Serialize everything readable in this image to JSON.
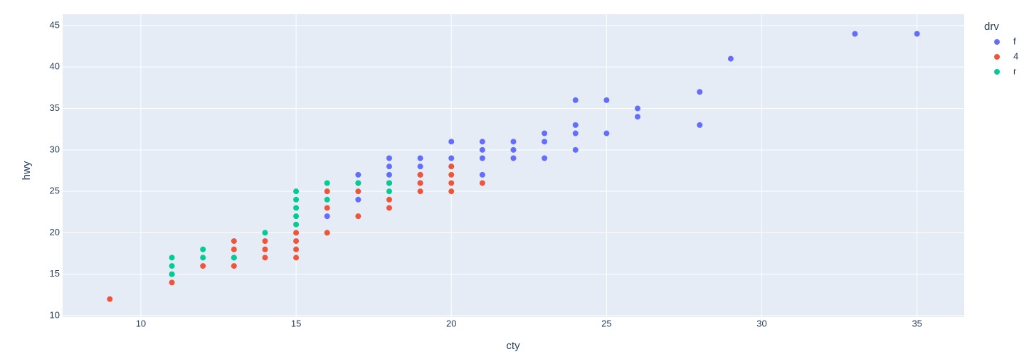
{
  "chart_data": {
    "type": "scatter",
    "x_label": "cty",
    "y_label": "hwy",
    "legend_title": "drv",
    "legend_position": "right",
    "grid": true,
    "xlim": [
      7.48,
      36.52
    ],
    "ylim": [
      9.83,
      46.37
    ],
    "xticks": [
      10,
      15,
      20,
      25,
      30,
      35
    ],
    "yticks": [
      10,
      15,
      20,
      25,
      30,
      35,
      40,
      45
    ],
    "series": [
      {
        "name": "f",
        "color": "#636efa",
        "x": [
          35,
          33,
          29,
          28,
          28,
          26,
          26,
          25,
          25,
          24,
          24,
          24,
          24,
          23,
          23,
          23,
          22,
          22,
          22,
          21,
          21,
          21,
          21,
          20,
          20,
          20,
          19,
          19,
          19,
          19,
          18,
          18,
          18,
          18,
          17,
          17,
          17,
          16
        ],
        "y": [
          44,
          44,
          41,
          37,
          33,
          35,
          34,
          36,
          32,
          36,
          33,
          32,
          30,
          32,
          31,
          29,
          31,
          30,
          29,
          31,
          30,
          29,
          27,
          31,
          29,
          28,
          29,
          28,
          27,
          26,
          29,
          28,
          27,
          26,
          27,
          26,
          24,
          22
        ]
      },
      {
        "name": "4",
        "color": "#ef553b",
        "x": [
          9,
          11,
          11,
          12,
          13,
          13,
          13,
          13,
          14,
          14,
          14,
          15,
          15,
          15,
          15,
          16,
          16,
          16,
          17,
          17,
          18,
          18,
          18,
          19,
          19,
          19,
          20,
          20,
          20,
          20,
          21
        ],
        "y": [
          12,
          14,
          15,
          16,
          16,
          17,
          18,
          19,
          17,
          18,
          19,
          17,
          18,
          19,
          20,
          20,
          23,
          25,
          22,
          25,
          23,
          24,
          26,
          25,
          26,
          27,
          25,
          26,
          27,
          28,
          26
        ]
      },
      {
        "name": "r",
        "color": "#00cc96",
        "x": [
          11,
          11,
          11,
          12,
          12,
          13,
          14,
          15,
          15,
          15,
          15,
          15,
          16,
          16,
          17,
          18,
          18
        ],
        "y": [
          15,
          16,
          17,
          17,
          18,
          17,
          20,
          21,
          22,
          23,
          24,
          25,
          24,
          26,
          26,
          25,
          26
        ]
      }
    ]
  }
}
